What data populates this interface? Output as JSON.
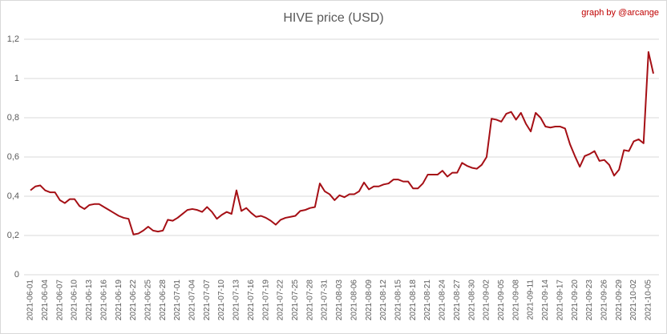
{
  "chart_data": {
    "type": "line",
    "title": "HIVE price (USD)",
    "annotation": "graph by @arcange",
    "categories": [
      "2021-06-01",
      null,
      null,
      "2021-06-04",
      null,
      null,
      "2021-06-07",
      null,
      null,
      "2021-06-10",
      null,
      null,
      "2021-06-13",
      null,
      null,
      "2021-06-16",
      null,
      null,
      "2021-06-19",
      null,
      null,
      "2021-06-22",
      null,
      null,
      "2021-06-25",
      null,
      null,
      "2021-06-28",
      null,
      null,
      "2021-07-01",
      null,
      null,
      "2021-07-04",
      null,
      null,
      "2021-07-07",
      null,
      null,
      "2021-07-10",
      null,
      null,
      "2021-07-13",
      null,
      null,
      "2021-07-16",
      null,
      null,
      "2021-07-19",
      null,
      null,
      "2021-07-22",
      null,
      null,
      "2021-07-25",
      null,
      null,
      "2021-07-28",
      null,
      null,
      "2021-07-31",
      null,
      null,
      "2021-08-03",
      null,
      null,
      "2021-08-06",
      null,
      null,
      "2021-08-09",
      null,
      null,
      "2021-08-12",
      null,
      null,
      "2021-08-15",
      null,
      null,
      "2021-08-18",
      null,
      null,
      "2021-08-21",
      null,
      null,
      "2021-08-24",
      null,
      null,
      "2021-08-27",
      null,
      null,
      "2021-08-30",
      null,
      null,
      "2021-09-02",
      null,
      null,
      "2021-09-05",
      null,
      null,
      "2021-09-08",
      null,
      null,
      "2021-09-11",
      null,
      null,
      "2021-09-14",
      null,
      null,
      "2021-09-17",
      null,
      null,
      "2021-09-20",
      null,
      null,
      "2021-09-23",
      null,
      null,
      "2021-09-26",
      null,
      null,
      "2021-09-29",
      null,
      null,
      "2021-10-02",
      null,
      null,
      "2021-10-05",
      null
    ],
    "values": [
      0.43,
      0.45,
      0.455,
      0.43,
      0.42,
      0.42,
      0.38,
      0.365,
      0.385,
      0.385,
      0.35,
      0.335,
      0.355,
      0.36,
      0.36,
      0.345,
      0.33,
      0.315,
      0.3,
      0.29,
      0.285,
      0.205,
      0.21,
      0.225,
      0.245,
      0.225,
      0.22,
      0.225,
      0.28,
      0.275,
      0.29,
      0.31,
      0.33,
      0.335,
      0.33,
      0.32,
      0.345,
      0.32,
      0.285,
      0.305,
      0.32,
      0.31,
      0.43,
      0.325,
      0.34,
      0.315,
      0.295,
      0.3,
      0.29,
      0.275,
      0.255,
      0.28,
      0.29,
      0.295,
      0.3,
      0.325,
      0.33,
      0.34,
      0.345,
      0.465,
      0.425,
      0.41,
      0.38,
      0.405,
      0.395,
      0.41,
      0.41,
      0.425,
      0.47,
      0.435,
      0.45,
      0.45,
      0.46,
      0.465,
      0.485,
      0.485,
      0.475,
      0.475,
      0.44,
      0.44,
      0.465,
      0.51,
      0.51,
      0.51,
      0.53,
      0.5,
      0.52,
      0.52,
      0.57,
      0.555,
      0.545,
      0.54,
      0.56,
      0.6,
      0.795,
      0.79,
      0.78,
      0.82,
      0.83,
      0.79,
      0.825,
      0.77,
      0.73,
      0.825,
      0.8,
      0.755,
      0.75,
      0.755,
      0.755,
      0.745,
      0.665,
      0.605,
      0.55,
      0.605,
      0.615,
      0.63,
      0.58,
      0.585,
      0.56,
      0.505,
      0.535,
      0.635,
      0.63,
      0.68,
      0.69,
      0.67,
      1.135,
      1.025
    ],
    "color": "#a50f15",
    "ylim": [
      0,
      1.2
    ],
    "yticks": [
      0,
      {
        "value": 0.2,
        "label": "0,2"
      },
      {
        "value": 0.4,
        "label": "0,4"
      },
      {
        "value": 0.6,
        "label": "0,6"
      },
      {
        "value": 0.8,
        "label": "0,8"
      },
      1,
      {
        "value": 1.2,
        "label": "1,2"
      }
    ],
    "grid": true
  }
}
